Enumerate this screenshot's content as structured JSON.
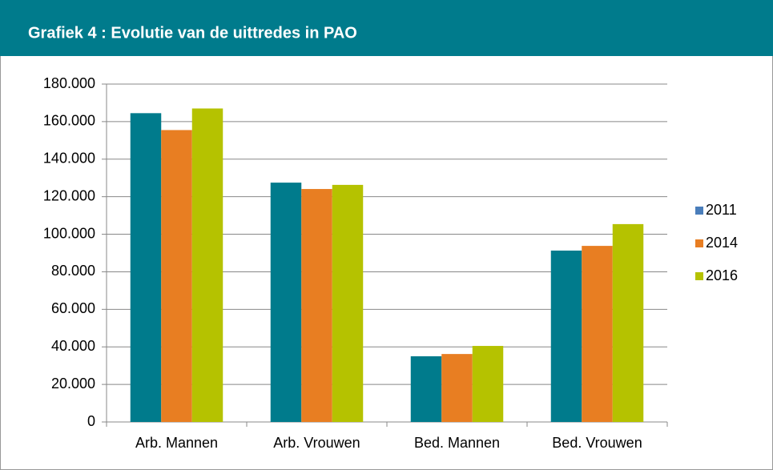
{
  "chart_data": {
    "type": "bar",
    "title": "Grafiek 4 : Evolutie van de uittredes in PAO",
    "categories": [
      "Arb. Mannen",
      "Arb. Vrouwen",
      "Bed. Mannen",
      "Bed. Vrouwen"
    ],
    "series": [
      {
        "name": "2011",
        "color": "#007b8c",
        "legend_color": "#4a7ebb",
        "values": [
          164500,
          127500,
          35000,
          91300
        ]
      },
      {
        "name": "2014",
        "color": "#e87e22",
        "values": [
          155500,
          124100,
          36200,
          93800
        ]
      },
      {
        "name": "2016",
        "color": "#b5c200",
        "values": [
          167000,
          126300,
          40500,
          105400
        ]
      }
    ],
    "ylim": [
      0,
      180000
    ],
    "yticks": [
      0,
      {
        "value": 20000,
        "label": "20.000"
      },
      {
        "value": 40000,
        "label": "40.000"
      },
      {
        "value": 60000,
        "label": "60.000"
      },
      {
        "value": 80000,
        "label": "80.000"
      },
      {
        "value": 100000,
        "label": "100.000"
      },
      {
        "value": 120000,
        "label": "120.000"
      },
      {
        "value": 140000,
        "label": "140.000"
      },
      {
        "value": 160000,
        "label": "160.000"
      },
      {
        "value": 180000,
        "label": "180.000"
      }
    ],
    "grid": true,
    "legend": "right"
  }
}
